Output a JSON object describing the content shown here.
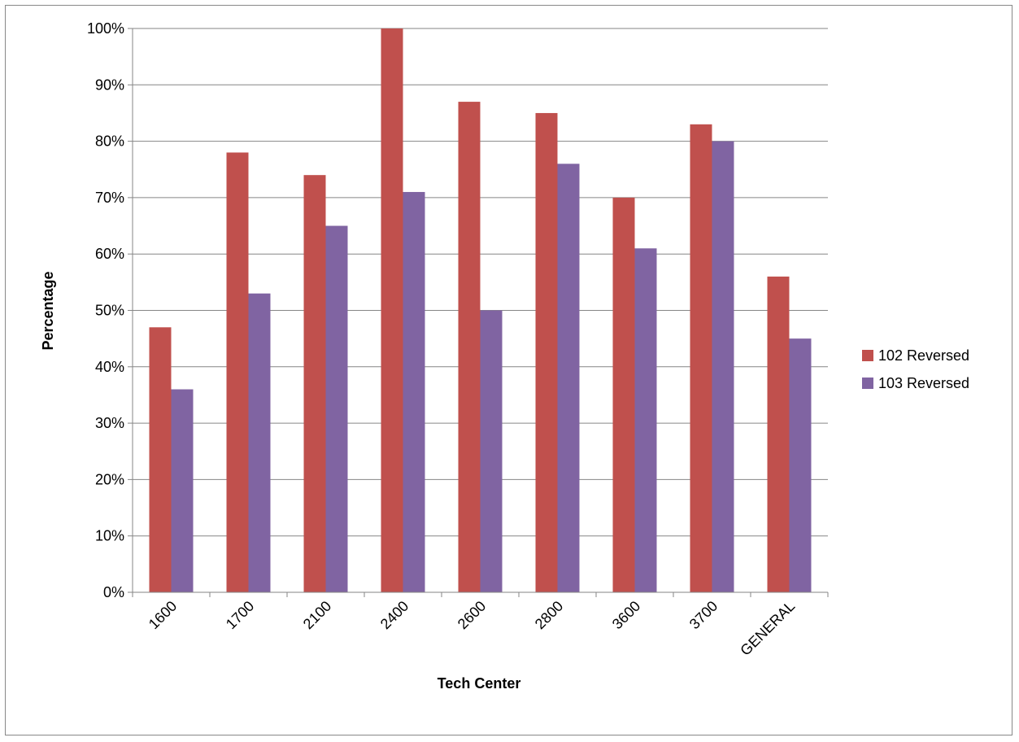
{
  "chart_data": {
    "type": "bar",
    "title": "",
    "xlabel": "Tech Center",
    "ylabel": "Percentage",
    "categories": [
      "1600",
      "1700",
      "2100",
      "2400",
      "2600",
      "2800",
      "3600",
      "3700",
      "GENERAL"
    ],
    "series": [
      {
        "name": "102 Reversed",
        "color": "#c0504d",
        "values": [
          47,
          78,
          74,
          100,
          87,
          85,
          70,
          83,
          56
        ]
      },
      {
        "name": "103 Reversed",
        "color": "#8064a2",
        "values": [
          36,
          53,
          65,
          71,
          50,
          76,
          61,
          80,
          45
        ]
      }
    ],
    "ylim": [
      0,
      100
    ],
    "y_ticks": [
      "0%",
      "10%",
      "20%",
      "30%",
      "40%",
      "50%",
      "60%",
      "70%",
      "80%",
      "90%",
      "100%"
    ],
    "y_tick_values": [
      0,
      10,
      20,
      30,
      40,
      50,
      60,
      70,
      80,
      90,
      100
    ],
    "grid": true,
    "legend_position": "right"
  }
}
